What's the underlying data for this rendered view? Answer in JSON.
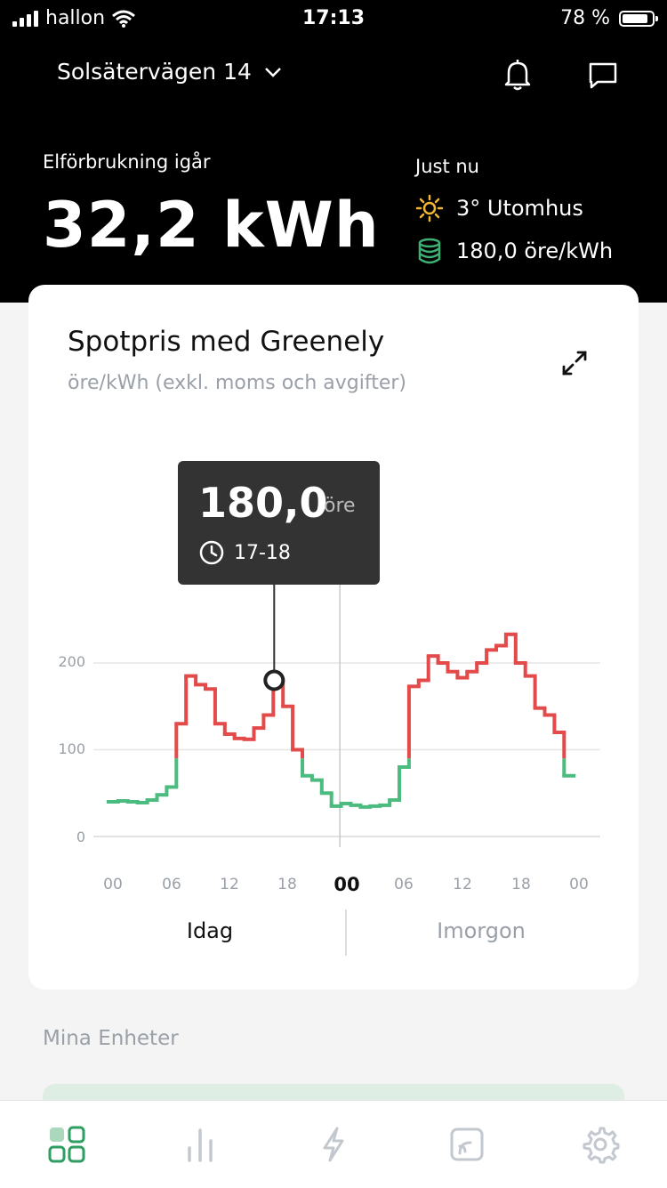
{
  "status_bar": {
    "carrier": "hallon",
    "time": "17:13",
    "battery": "78 %",
    "battery_level": 0.78
  },
  "header": {
    "address": "Solsätervägen 14",
    "yesterday_label": "Elförbrukning igår",
    "yesterday_value": "32,2 kWh",
    "now_label": "Just nu",
    "temperature": "3° Utomhus",
    "price_now": "180,0 öre/kWh"
  },
  "card": {
    "title": "Spotpris med Greenely",
    "subtitle": "öre/kWh (exkl. moms och avgifter)",
    "tooltip": {
      "value": "180,0",
      "unit": "öre",
      "time": "17-18"
    },
    "day_tabs": [
      "Idag",
      "Imorgon"
    ],
    "x_ticks": [
      "00",
      "06",
      "12",
      "18",
      "00",
      "06",
      "12",
      "18",
      "00"
    ],
    "y_ticks": [
      "200",
      "100",
      "0"
    ]
  },
  "section": {
    "title": "Mina Enheter"
  },
  "tabs": [
    "home",
    "statistics",
    "electricity",
    "devices",
    "settings"
  ],
  "colors": {
    "high": "#e34a4a",
    "low": "#4cbb7f",
    "accent": "#2e9e62",
    "tab_inactive": "#c3c8cf"
  },
  "chart_data": {
    "type": "line",
    "step": true,
    "x": [
      "00",
      "01",
      "02",
      "03",
      "04",
      "05",
      "06",
      "07",
      "08",
      "09",
      "10",
      "11",
      "12",
      "13",
      "14",
      "15",
      "16",
      "17",
      "18",
      "19",
      "20",
      "21",
      "22",
      "23",
      "00",
      "01",
      "02",
      "03",
      "04",
      "05",
      "06",
      "07",
      "08",
      "09",
      "10",
      "11",
      "12",
      "13",
      "14",
      "15",
      "16",
      "17",
      "18",
      "19",
      "20",
      "21",
      "22",
      "23"
    ],
    "series": [
      {
        "values": [
          40,
          41,
          40,
          39,
          42,
          48,
          57,
          130,
          185,
          175,
          170,
          130,
          118,
          113,
          112,
          125,
          140,
          180,
          150,
          100,
          70,
          65,
          50,
          35,
          38,
          36,
          34,
          35,
          36,
          42,
          80,
          173,
          180,
          208,
          200,
          190,
          183,
          190,
          200,
          215,
          220,
          233,
          200,
          185,
          148,
          140,
          120,
          70
        ]
      }
    ],
    "ylim": [
      0,
      210
    ],
    "y_ticks": [
      0,
      100,
      200
    ],
    "highlight": {
      "x": "17",
      "value": 180.0
    },
    "threshold_colors": {
      "above": "#e34a4a",
      "below": "#4cbb7f",
      "threshold": 90
    },
    "x_labels": [
      "00",
      "06",
      "12",
      "18",
      "00",
      "06",
      "12",
      "18",
      "00"
    ],
    "grid": true
  }
}
